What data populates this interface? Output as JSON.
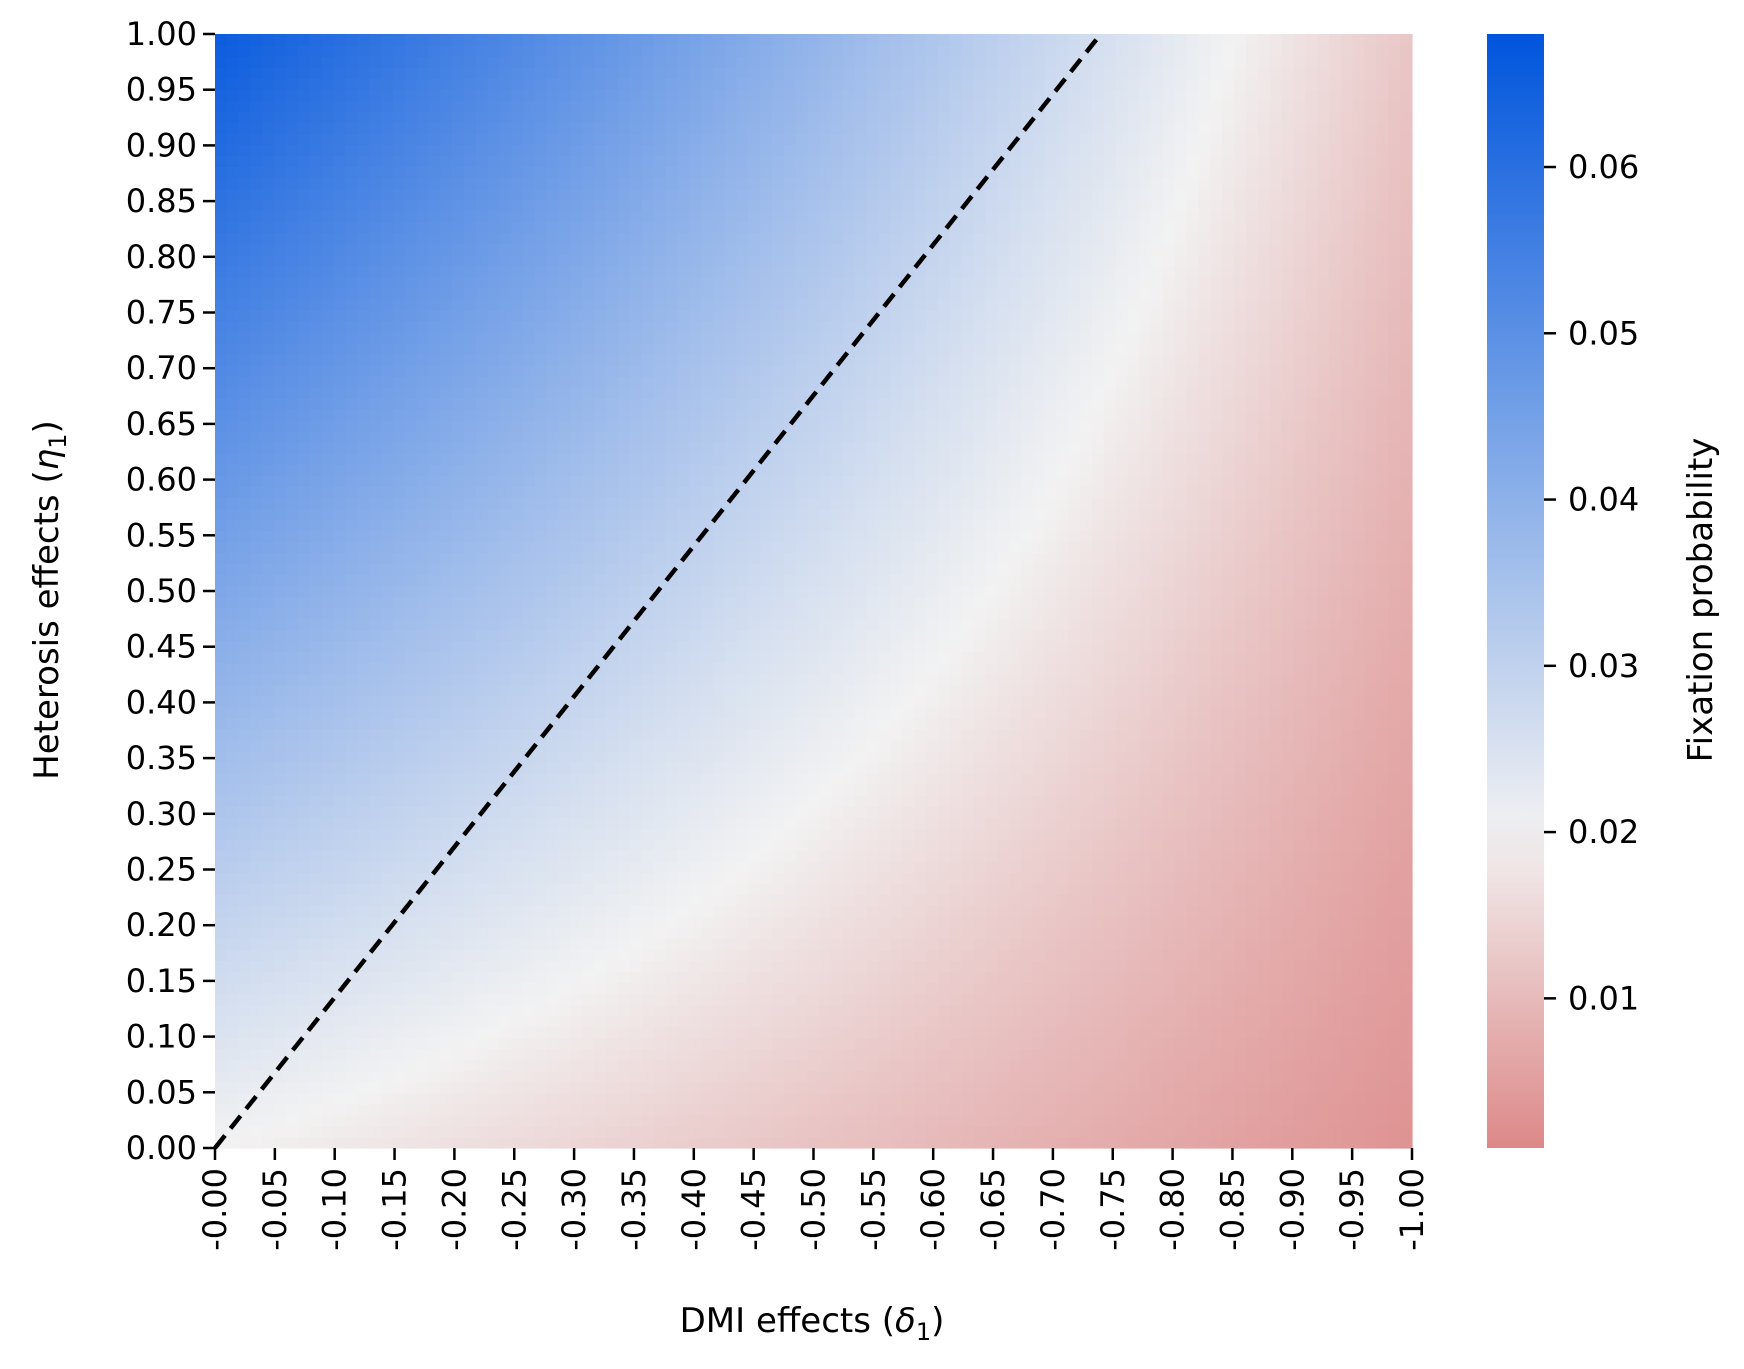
{
  "chart_data": {
    "type": "heatmap",
    "title": "",
    "xlabel": "DMI effects (",
    "xlabel_symbol": "δ",
    "xlabel_subscript": "1",
    "xlabel_suffix": ")",
    "ylabel": "Heterosis effects (",
    "ylabel_symbol": "η",
    "ylabel_subscript": "1",
    "ylabel_suffix": ")",
    "colorbar_label": "Fixation probability",
    "x_range": [
      0.0,
      -1.0
    ],
    "y_range": [
      0.0,
      1.0
    ],
    "x_tick_labels": [
      "-0.00",
      "-0.05",
      "-0.10",
      "-0.15",
      "-0.20",
      "-0.25",
      "-0.30",
      "-0.35",
      "-0.40",
      "-0.45",
      "-0.50",
      "-0.55",
      "-0.60",
      "-0.65",
      "-0.70",
      "-0.75",
      "-0.80",
      "-0.85",
      "-0.90",
      "-0.95",
      "-1.00"
    ],
    "y_tick_labels": [
      "0.00",
      "0.05",
      "0.10",
      "0.15",
      "0.20",
      "0.25",
      "0.30",
      "0.35",
      "0.40",
      "0.45",
      "0.50",
      "0.55",
      "0.60",
      "0.65",
      "0.70",
      "0.75",
      "0.80",
      "0.85",
      "0.90",
      "0.95",
      "1.00"
    ],
    "colorbar_ticks": [
      0.01,
      0.02,
      0.03,
      0.04,
      0.05,
      0.06
    ],
    "colorbar_tick_labels": [
      "0.01",
      "0.02",
      "0.03",
      "0.04",
      "0.05",
      "0.06"
    ],
    "color_range": [
      0.001,
      0.068
    ],
    "colormap": {
      "low": "#dd8888",
      "center": "#f2f2f2",
      "high": "#0055dd",
      "center_value": 0.02
    },
    "grid_resolution": 101,
    "value_samples": [
      {
        "delta": 0.0,
        "eta": 1.0,
        "value": 0.066
      },
      {
        "delta": 0.0,
        "eta": 0.0,
        "value": 0.02
      },
      {
        "delta": -1.0,
        "eta": 1.0,
        "value": 0.012
      },
      {
        "delta": -1.0,
        "eta": 0.0,
        "value": 0.003
      }
    ],
    "reference_line": {
      "style": "dashed",
      "color": "#000000",
      "from": {
        "delta": 0.0,
        "eta": 0.0
      },
      "to": {
        "delta": -0.74,
        "eta": 1.0
      }
    }
  }
}
